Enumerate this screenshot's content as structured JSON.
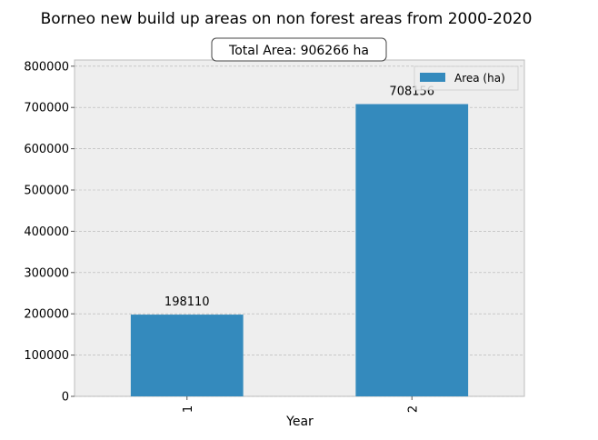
{
  "chart_data": {
    "type": "bar",
    "title": "Borneo new build up areas on non forest areas from 2000-2020",
    "subtitle": "Total Area: 906266 ha",
    "xlabel": "Year",
    "ylabel": "",
    "categories": [
      "1",
      "2"
    ],
    "series": [
      {
        "name": "Area (ha)",
        "values": [
          198110,
          708156
        ]
      }
    ],
    "data_labels": [
      "198110",
      "708156"
    ],
    "ylim": [
      0,
      815000
    ],
    "yticks": [
      0,
      100000,
      200000,
      300000,
      400000,
      500000,
      600000,
      700000,
      800000
    ],
    "ytick_labels": [
      "0",
      "100000",
      "200000",
      "300000",
      "400000",
      "500000",
      "600000",
      "700000",
      "800000"
    ],
    "grid": true,
    "legend_position": "top-right",
    "bar_color": "#348abd",
    "plot_background": "#eeeeee"
  }
}
